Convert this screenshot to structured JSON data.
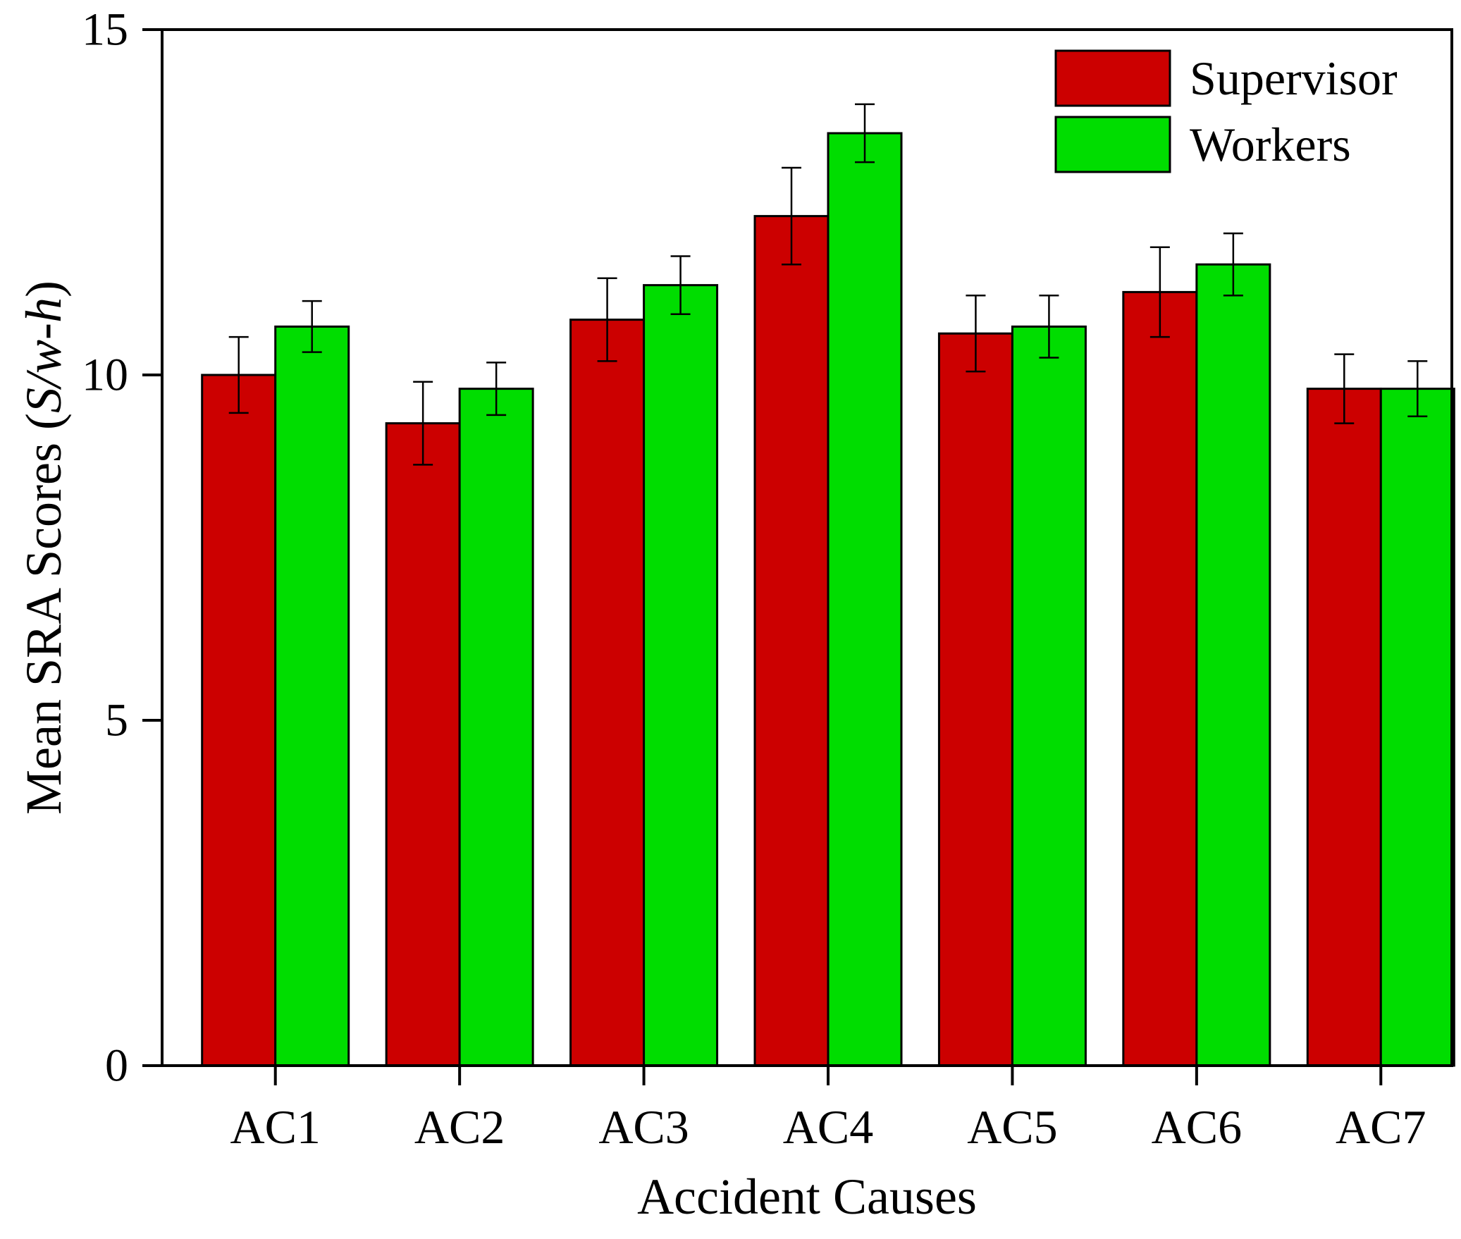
{
  "chart_data": {
    "type": "bar",
    "title": "",
    "xlabel": "Accident Causes",
    "ylabel": "Mean SRA Scores (",
    "ylabel_italic": "S/w-h",
    "ylabel_suffix": ")",
    "ylim": [
      0,
      15
    ],
    "yticks": [
      0,
      5,
      10,
      15
    ],
    "yticklabels": [
      "0",
      "5",
      "10",
      "15"
    ],
    "categories": [
      "AC1",
      "AC2",
      "AC3",
      "AC4",
      "AC5",
      "AC6",
      "AC7"
    ],
    "legend_position": "top-right",
    "error_bars": true,
    "series": [
      {
        "name": "Supervisor",
        "color": "#cc0000",
        "values": [
          10.0,
          9.3,
          10.8,
          12.3,
          10.6,
          11.2,
          9.8
        ],
        "errors": [
          0.55,
          0.6,
          0.6,
          0.7,
          0.55,
          0.65,
          0.5
        ]
      },
      {
        "name": "Workers",
        "color": "#00dd00",
        "values": [
          10.7,
          9.8,
          11.3,
          13.5,
          10.7,
          11.6,
          9.8
        ],
        "errors": [
          0.37,
          0.38,
          0.42,
          0.42,
          0.45,
          0.45,
          0.4
        ]
      }
    ]
  }
}
